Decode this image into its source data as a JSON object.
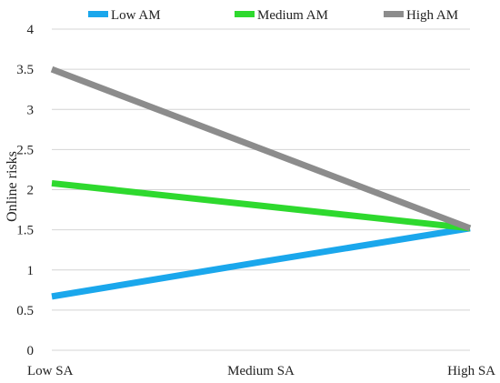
{
  "chart_data": {
    "type": "line",
    "title": "",
    "xlabel": "",
    "ylabel": "Online risks",
    "categories": [
      "Low SA",
      "Medium SA",
      "High SA"
    ],
    "ylim": [
      0,
      4
    ],
    "yticks": [
      "0",
      "0.5",
      "1",
      "1.5",
      "2",
      "2.5",
      "3",
      "3.5",
      "4"
    ],
    "grid": true,
    "legend_position": "top",
    "series": [
      {
        "name": "Low AM",
        "color": "#1AA7EC",
        "values": [
          0.67,
          1.1,
          1.52
        ]
      },
      {
        "name": "Medium AM",
        "color": "#2ED92E",
        "values": [
          2.08,
          1.8,
          1.52
        ]
      },
      {
        "name": "High AM",
        "color": "#8C8C8C",
        "values": [
          3.5,
          2.51,
          1.52
        ]
      }
    ]
  }
}
